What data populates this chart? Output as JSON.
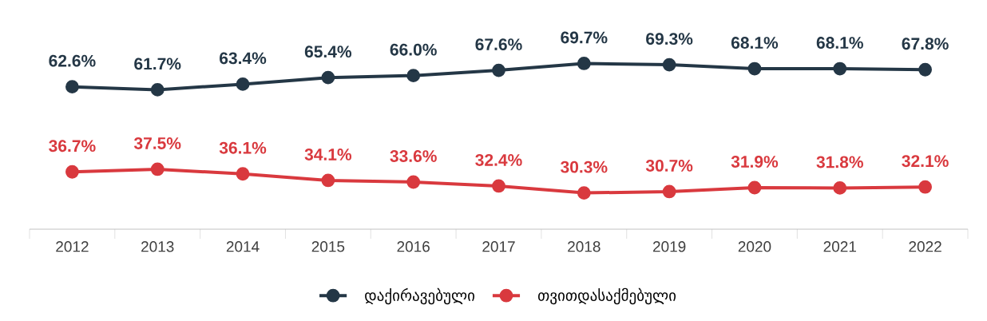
{
  "chart_data": {
    "type": "line",
    "categories": [
      "2012",
      "2013",
      "2014",
      "2015",
      "2016",
      "2017",
      "2018",
      "2019",
      "2020",
      "2021",
      "2022"
    ],
    "series": [
      {
        "name": "დაქირავებული",
        "color": "#243746",
        "values": [
          62.6,
          61.7,
          63.4,
          65.4,
          66.0,
          67.6,
          69.7,
          69.3,
          68.1,
          68.1,
          67.8
        ],
        "value_labels": [
          "62.6%",
          "61.7%",
          "63.4%",
          "65.4%",
          "66.0%",
          "67.6%",
          "69.7%",
          "69.3%",
          "68.1%",
          "68.1%",
          "67.8%"
        ]
      },
      {
        "name": "თვითდასაქმებული",
        "color": "#d9393e",
        "values": [
          36.7,
          37.5,
          36.1,
          34.1,
          33.6,
          32.4,
          30.3,
          30.7,
          31.9,
          31.8,
          32.1
        ],
        "value_labels": [
          "36.7%",
          "37.5%",
          "36.1%",
          "34.1%",
          "33.6%",
          "32.4%",
          "30.3%",
          "30.7%",
          "31.9%",
          "31.8%",
          "32.1%"
        ]
      }
    ],
    "marker": "circle",
    "line_style": "solid",
    "grid": false,
    "legend": "bottom"
  }
}
